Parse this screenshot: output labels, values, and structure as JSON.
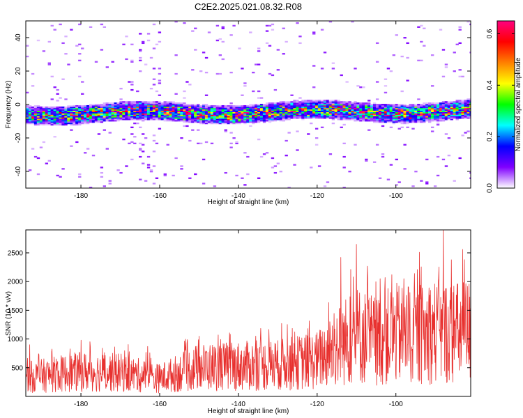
{
  "title": "C2E2.2025.021.08.32.R08",
  "chart_data": [
    {
      "type": "heatmap",
      "xlabel": "Height of straight line (km)",
      "ylabel": "Frequency (Hz)",
      "xlim": [
        -194,
        -81
      ],
      "ylim": [
        -50,
        50
      ],
      "xticks": [
        -180,
        -160,
        -140,
        -120,
        -100
      ],
      "yticks": [
        -40,
        -20,
        0,
        20,
        40
      ],
      "colorbar": {
        "label": "Normalized spectral amplitude",
        "range": [
          0,
          0.65
        ],
        "ticks": [
          0.0,
          0.2,
          0.4,
          0.6
        ],
        "colors": [
          "#ffffff",
          "#8000ff",
          "#0000ff",
          "#00ffff",
          "#00ff00",
          "#ffff00",
          "#ff8000",
          "#ff0000",
          "#ff0080"
        ]
      },
      "band": {
        "center_hz": -5,
        "half_width_hz": 4,
        "amplitude_range": [
          0.05,
          0.62
        ]
      },
      "grid": false
    },
    {
      "type": "line",
      "xlabel": "Height of straight line (km)",
      "ylabel": "SNR (10 * v/v)",
      "xlim": [
        -194,
        -81
      ],
      "ylim": [
        0,
        2900
      ],
      "xticks": [
        -180,
        -160,
        -140,
        -120,
        -100
      ],
      "yticks": [
        500,
        1000,
        1500,
        2000,
        2500
      ],
      "color": "#e8312f",
      "envelope": {
        "x": [
          -194,
          -180,
          -170,
          -160,
          -150,
          -140,
          -130,
          -120,
          -115,
          -110,
          -105,
          -100,
          -95,
          -90,
          -85,
          -81
        ],
        "y": [
          400,
          520,
          500,
          380,
          620,
          640,
          660,
          760,
          1050,
          1300,
          1180,
          1320,
          1260,
          1380,
          1330,
          1400
        ]
      },
      "peaks": [
        {
          "x": -193,
          "y": 900
        },
        {
          "x": -180,
          "y": 980
        },
        {
          "x": -163,
          "y": 870
        },
        {
          "x": -150,
          "y": 1050
        },
        {
          "x": -129,
          "y": 1270
        },
        {
          "x": -114,
          "y": 2420
        },
        {
          "x": -110,
          "y": 2650
        },
        {
          "x": -104,
          "y": 2050
        },
        {
          "x": -101,
          "y": 2120
        },
        {
          "x": -98,
          "y": 2050
        },
        {
          "x": -94,
          "y": 2510
        },
        {
          "x": -88,
          "y": 2900
        },
        {
          "x": -83,
          "y": 2560
        },
        {
          "x": -81,
          "y": 2480
        }
      ],
      "grid": false
    }
  ]
}
